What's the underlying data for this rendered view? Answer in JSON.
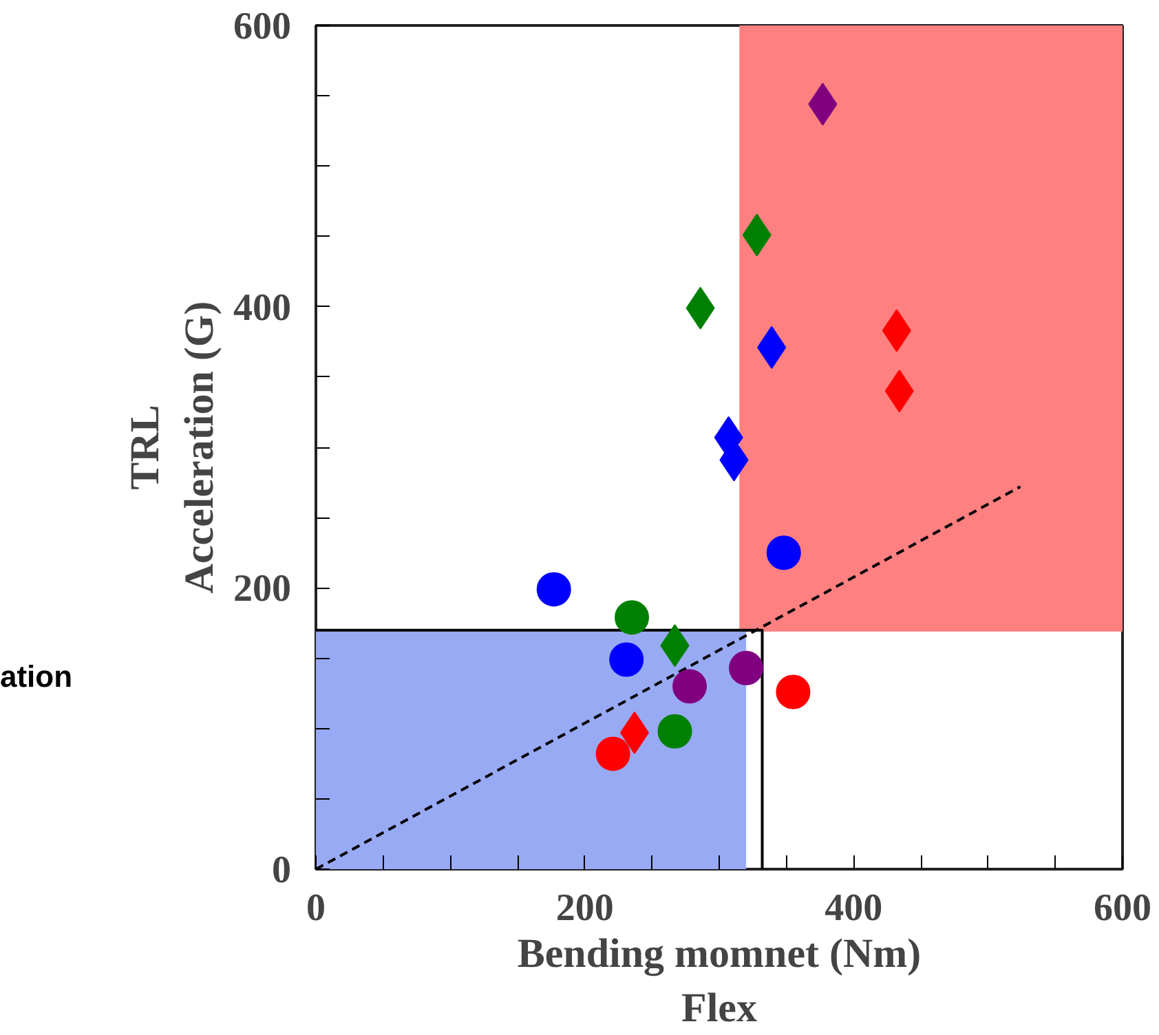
{
  "chart_data": {
    "type": "scatter",
    "xlabel": "Bending momnet (Nm)\nFlex",
    "ylabel": "TRL\nAcceleration (G)",
    "annotations": [
      "ation"
    ],
    "xlim": [
      0,
      600
    ],
    "ylim": [
      0,
      600
    ],
    "xticks": [
      0,
      {
        "value": 50,
        "label": null
      },
      {
        "value": 100,
        "label": null
      },
      {
        "value": 150,
        "label": null
      },
      200,
      {
        "value": 250,
        "label": null
      },
      {
        "value": 300,
        "label": null
      },
      {
        "value": 350,
        "label": null
      },
      400,
      {
        "value": 450,
        "label": null
      },
      {
        "value": 500,
        "label": null
      },
      {
        "value": 550,
        "label": null
      },
      600
    ],
    "yticks": [
      0,
      {
        "value": 50,
        "label": null
      },
      {
        "value": 100,
        "label": null
      },
      {
        "value": 150,
        "label": null
      },
      200,
      {
        "value": 250,
        "label": null
      },
      {
        "value": 300,
        "label": null
      },
      {
        "value": 350,
        "label": null
      },
      400,
      {
        "value": 450,
        "label": null
      },
      {
        "value": 500,
        "label": null
      },
      {
        "value": 550,
        "label": null
      },
      600
    ],
    "grid": false,
    "series": [
      {
        "type": "line",
        "color": "#ff8080",
        "x": [
          315,
          600
        ],
        "values": [
          170,
          170
        ],
        "lower": [
          170,
          170
        ],
        "upper": [
          600,
          600
        ]
      },
      {
        "type": "area",
        "color": "#99aaf5",
        "x": [
          0,
          320
        ],
        "values": [
          170,
          170
        ]
      },
      {
        "type": "line",
        "color": "#000000",
        "line_style": "solid",
        "x": [
          0,
          332,
          332
        ],
        "values": [
          170,
          170,
          0
        ]
      },
      {
        "type": "line",
        "color": "#000000",
        "line_style": "dashed",
        "x": [
          0,
          524
        ],
        "values": [
          0,
          272
        ]
      },
      {
        "marker": "diamond",
        "color": "#800080",
        "x": [
          377
        ],
        "values": [
          544
        ]
      },
      {
        "marker": "diamond",
        "color": "#008000",
        "x": [
          328,
          286,
          267
        ],
        "values": [
          451,
          399,
          159
        ]
      },
      {
        "marker": "diamond",
        "color": "#0000ff",
        "x": [
          339,
          307,
          311
        ],
        "values": [
          371,
          307,
          291
        ]
      },
      {
        "marker": "diamond",
        "color": "#ff0000",
        "x": [
          432,
          434,
          237
        ],
        "values": [
          383,
          340,
          97
        ]
      },
      {
        "marker": "circle",
        "color": "#0000ff",
        "x": [
          348,
          177,
          231
        ],
        "values": [
          225,
          199,
          149
        ]
      },
      {
        "marker": "circle",
        "color": "#008000",
        "x": [
          235,
          267
        ],
        "values": [
          179,
          98
        ]
      },
      {
        "marker": "circle",
        "color": "#800080",
        "x": [
          278,
          320
        ],
        "values": [
          130,
          143
        ]
      },
      {
        "marker": "circle",
        "color": "#ff0000",
        "x": [
          355,
          221
        ],
        "values": [
          126,
          82
        ]
      }
    ]
  }
}
